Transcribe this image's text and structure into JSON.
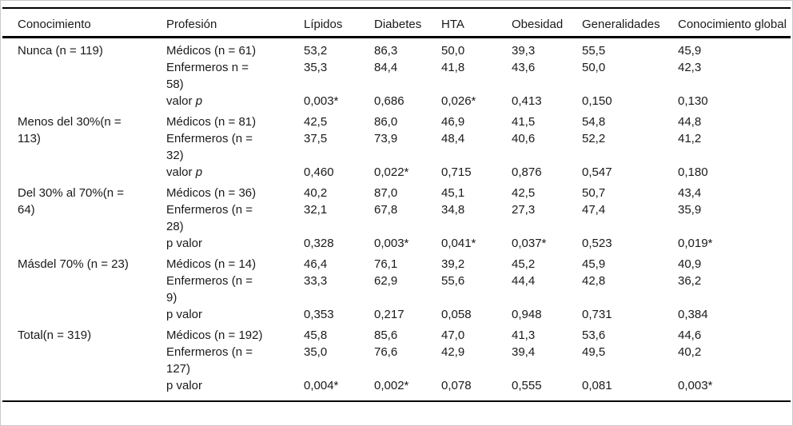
{
  "colors": {
    "rule": "#000000",
    "text": "#1a1a1a",
    "frame_border": "#c9c9c9",
    "background": "#ffffff"
  },
  "table": {
    "columns": [
      "Conocimiento",
      "Profesión",
      "Lípidos",
      "Diabetes",
      "HTA",
      "Obesidad",
      "Generalidades",
      "Conocimiento global"
    ],
    "groups": [
      {
        "label": "Nunca (n = 119)",
        "rows": [
          {
            "label_parts": [
              {
                "text": "Médicos (n = 61)"
              }
            ],
            "values": [
              "53,2",
              "86,3",
              "50,0",
              "39,3",
              "55,5",
              "45,9"
            ]
          },
          {
            "label_parts": [
              {
                "text": "Enfermeros n = 58)"
              }
            ],
            "values": [
              "35,3",
              "84,4",
              "41,8",
              "43,6",
              "50,0",
              "42,3"
            ]
          },
          {
            "label_parts": [
              {
                "text": "valor "
              },
              {
                "text": "p",
                "italic": true
              }
            ],
            "values": [
              "0,003*",
              "0,686",
              "0,026*",
              "0,413",
              "0,150",
              "0,130"
            ]
          }
        ]
      },
      {
        "label": "Menos del 30%(n = 113)",
        "rows": [
          {
            "label_parts": [
              {
                "text": "Médicos (n = 81)"
              }
            ],
            "values": [
              "42,5",
              "86,0",
              "46,9",
              "41,5",
              "54,8",
              "44,8"
            ]
          },
          {
            "label_parts": [
              {
                "text": "Enfermeros (n = 32)"
              }
            ],
            "values": [
              "37,5",
              "73,9",
              "48,4",
              "40,6",
              "52,2",
              "41,2"
            ]
          },
          {
            "label_parts": [
              {
                "text": "valor "
              },
              {
                "text": "p",
                "italic": true
              }
            ],
            "values": [
              "0,460",
              "0,022*",
              "0,715",
              "0,876",
              "0,547",
              "0,180"
            ]
          }
        ]
      },
      {
        "label": "Del 30% al 70%(n = 64)",
        "rows": [
          {
            "label_parts": [
              {
                "text": "Médicos (n = 36)"
              }
            ],
            "values": [
              "40,2",
              "87,0",
              "45,1",
              "42,5",
              "50,7",
              "43,4"
            ]
          },
          {
            "label_parts": [
              {
                "text": "Enfermeros (n = 28)"
              }
            ],
            "values": [
              "32,1",
              "67,8",
              "34,8",
              "27,3",
              "47,4",
              "35,9"
            ]
          },
          {
            "label_parts": [
              {
                "text": "p valor"
              }
            ],
            "values": [
              "0,328",
              "0,003*",
              "0,041*",
              "0,037*",
              "0,523",
              "0,019*"
            ]
          }
        ]
      },
      {
        "label": "Másdel 70% (n = 23)",
        "rows": [
          {
            "label_parts": [
              {
                "text": "Médicos (n = 14)"
              }
            ],
            "values": [
              "46,4",
              "76,1",
              "39,2",
              "45,2",
              "45,9",
              "40,9"
            ]
          },
          {
            "label_parts": [
              {
                "text": "Enfermeros (n = 9)"
              }
            ],
            "values": [
              "33,3",
              "62,9",
              "55,6",
              "44,4",
              "42,8",
              "36,2"
            ]
          },
          {
            "label_parts": [
              {
                "text": "p valor"
              }
            ],
            "values": [
              "0,353",
              "0,217",
              "0,058",
              "0,948",
              "0,731",
              "0,384"
            ]
          }
        ]
      },
      {
        "label": "Total(n = 319)",
        "rows": [
          {
            "label_parts": [
              {
                "text": "Médicos (n = 192)"
              }
            ],
            "values": [
              "45,8",
              "85,6",
              "47,0",
              "41,3",
              "53,6",
              "44,6"
            ]
          },
          {
            "label_parts": [
              {
                "text": "Enfermeros (n = 127)"
              }
            ],
            "values": [
              "35,0",
              "76,6",
              "42,9",
              "39,4",
              "49,5",
              "40,2"
            ]
          },
          {
            "label_parts": [
              {
                "text": "p valor"
              }
            ],
            "values": [
              "0,004*",
              "0,002*",
              "0,078",
              "0,555",
              "0,081",
              "0,003*"
            ]
          }
        ]
      }
    ]
  }
}
